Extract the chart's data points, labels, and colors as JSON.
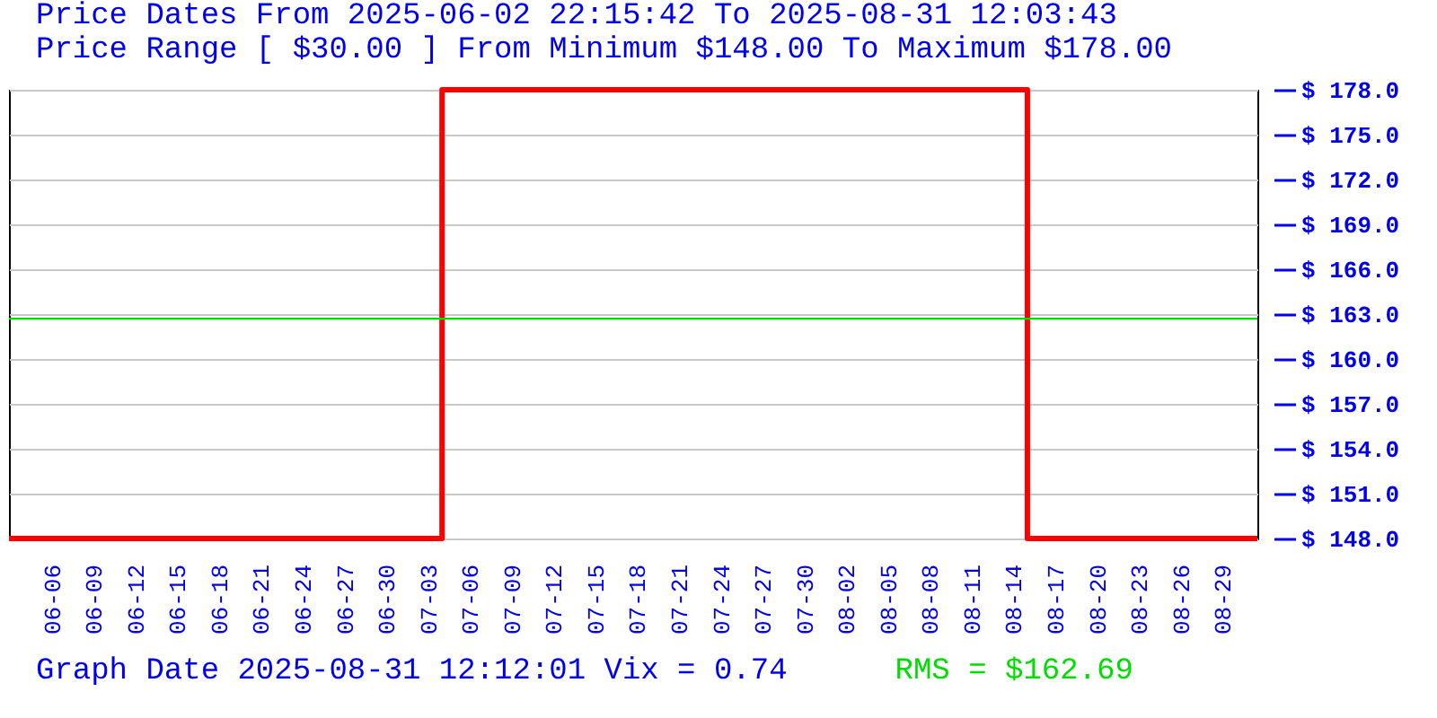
{
  "chart_data": {
    "type": "step",
    "title": "Price Dates From 2025-06-02 22:15:42 To 2025-08-31 12:03:43",
    "subtitle": "Price Range [ $30.00 ] From Minimum $148.00 To Maximum $178.00",
    "annotations": [
      "Graph Date 2025-08-31 12:12:01 Vix = 0.74"
    ],
    "x": [
      "2025-06-02T22:15",
      "2025-07-04",
      "2025-08-15",
      "2025-08-31T12:03"
    ],
    "series": [
      {
        "color": "#ff0000",
        "values": [
          148,
          178,
          148,
          148
        ]
      }
    ],
    "xlim": [
      "2025-06-02T22:15",
      "2025-08-31T12:03"
    ],
    "xticks": [
      {
        "value": "2025-06-06",
        "label": "06-06"
      },
      {
        "value": "2025-06-09",
        "label": "06-09"
      },
      {
        "value": "2025-06-12",
        "label": "06-12"
      },
      {
        "value": "2025-06-15",
        "label": "06-15"
      },
      {
        "value": "2025-06-18",
        "label": "06-18"
      },
      {
        "value": "2025-06-21",
        "label": "06-21"
      },
      {
        "value": "2025-06-24",
        "label": "06-24"
      },
      {
        "value": "2025-06-27",
        "label": "06-27"
      },
      {
        "value": "2025-06-30",
        "label": "06-30"
      },
      {
        "value": "2025-07-03",
        "label": "07-03"
      },
      {
        "value": "2025-07-06",
        "label": "07-06"
      },
      {
        "value": "2025-07-09",
        "label": "07-09"
      },
      {
        "value": "2025-07-12",
        "label": "07-12"
      },
      {
        "value": "2025-07-15",
        "label": "07-15"
      },
      {
        "value": "2025-07-18",
        "label": "07-18"
      },
      {
        "value": "2025-07-21",
        "label": "07-21"
      },
      {
        "value": "2025-07-24",
        "label": "07-24"
      },
      {
        "value": "2025-07-27",
        "label": "07-27"
      },
      {
        "value": "2025-07-30",
        "label": "07-30"
      },
      {
        "value": "2025-08-02",
        "label": "08-02"
      },
      {
        "value": "2025-08-05",
        "label": "08-05"
      },
      {
        "value": "2025-08-08",
        "label": "08-08"
      },
      {
        "value": "2025-08-11",
        "label": "08-11"
      },
      {
        "value": "2025-08-14",
        "label": "08-14"
      },
      {
        "value": "2025-08-17",
        "label": "08-17"
      },
      {
        "value": "2025-08-20",
        "label": "08-20"
      },
      {
        "value": "2025-08-23",
        "label": "08-23"
      },
      {
        "value": "2025-08-26",
        "label": "08-26"
      },
      {
        "value": "2025-08-29",
        "label": "08-29"
      }
    ],
    "ylim": [
      148,
      178
    ],
    "yticks": [
      {
        "value": 148,
        "label": "$ 148.0"
      },
      {
        "value": 151,
        "label": "$ 151.0"
      },
      {
        "value": 154,
        "label": "$ 154.0"
      },
      {
        "value": 157,
        "label": "$ 157.0"
      },
      {
        "value": 160,
        "label": "$ 160.0"
      },
      {
        "value": 163,
        "label": "$ 163.0"
      },
      {
        "value": 166,
        "label": "$ 166.0"
      },
      {
        "value": 169,
        "label": "$ 169.0"
      },
      {
        "value": 172,
        "label": "$ 172.0"
      },
      {
        "value": 175,
        "label": "$ 175.0"
      },
      {
        "value": 178,
        "label": "$ 178.0"
      }
    ],
    "ref_lines": [
      {
        "axis": "y",
        "value": 162.69,
        "label": "RMS = $162.69",
        "color": "#00dd00"
      }
    ],
    "grid": "y"
  }
}
